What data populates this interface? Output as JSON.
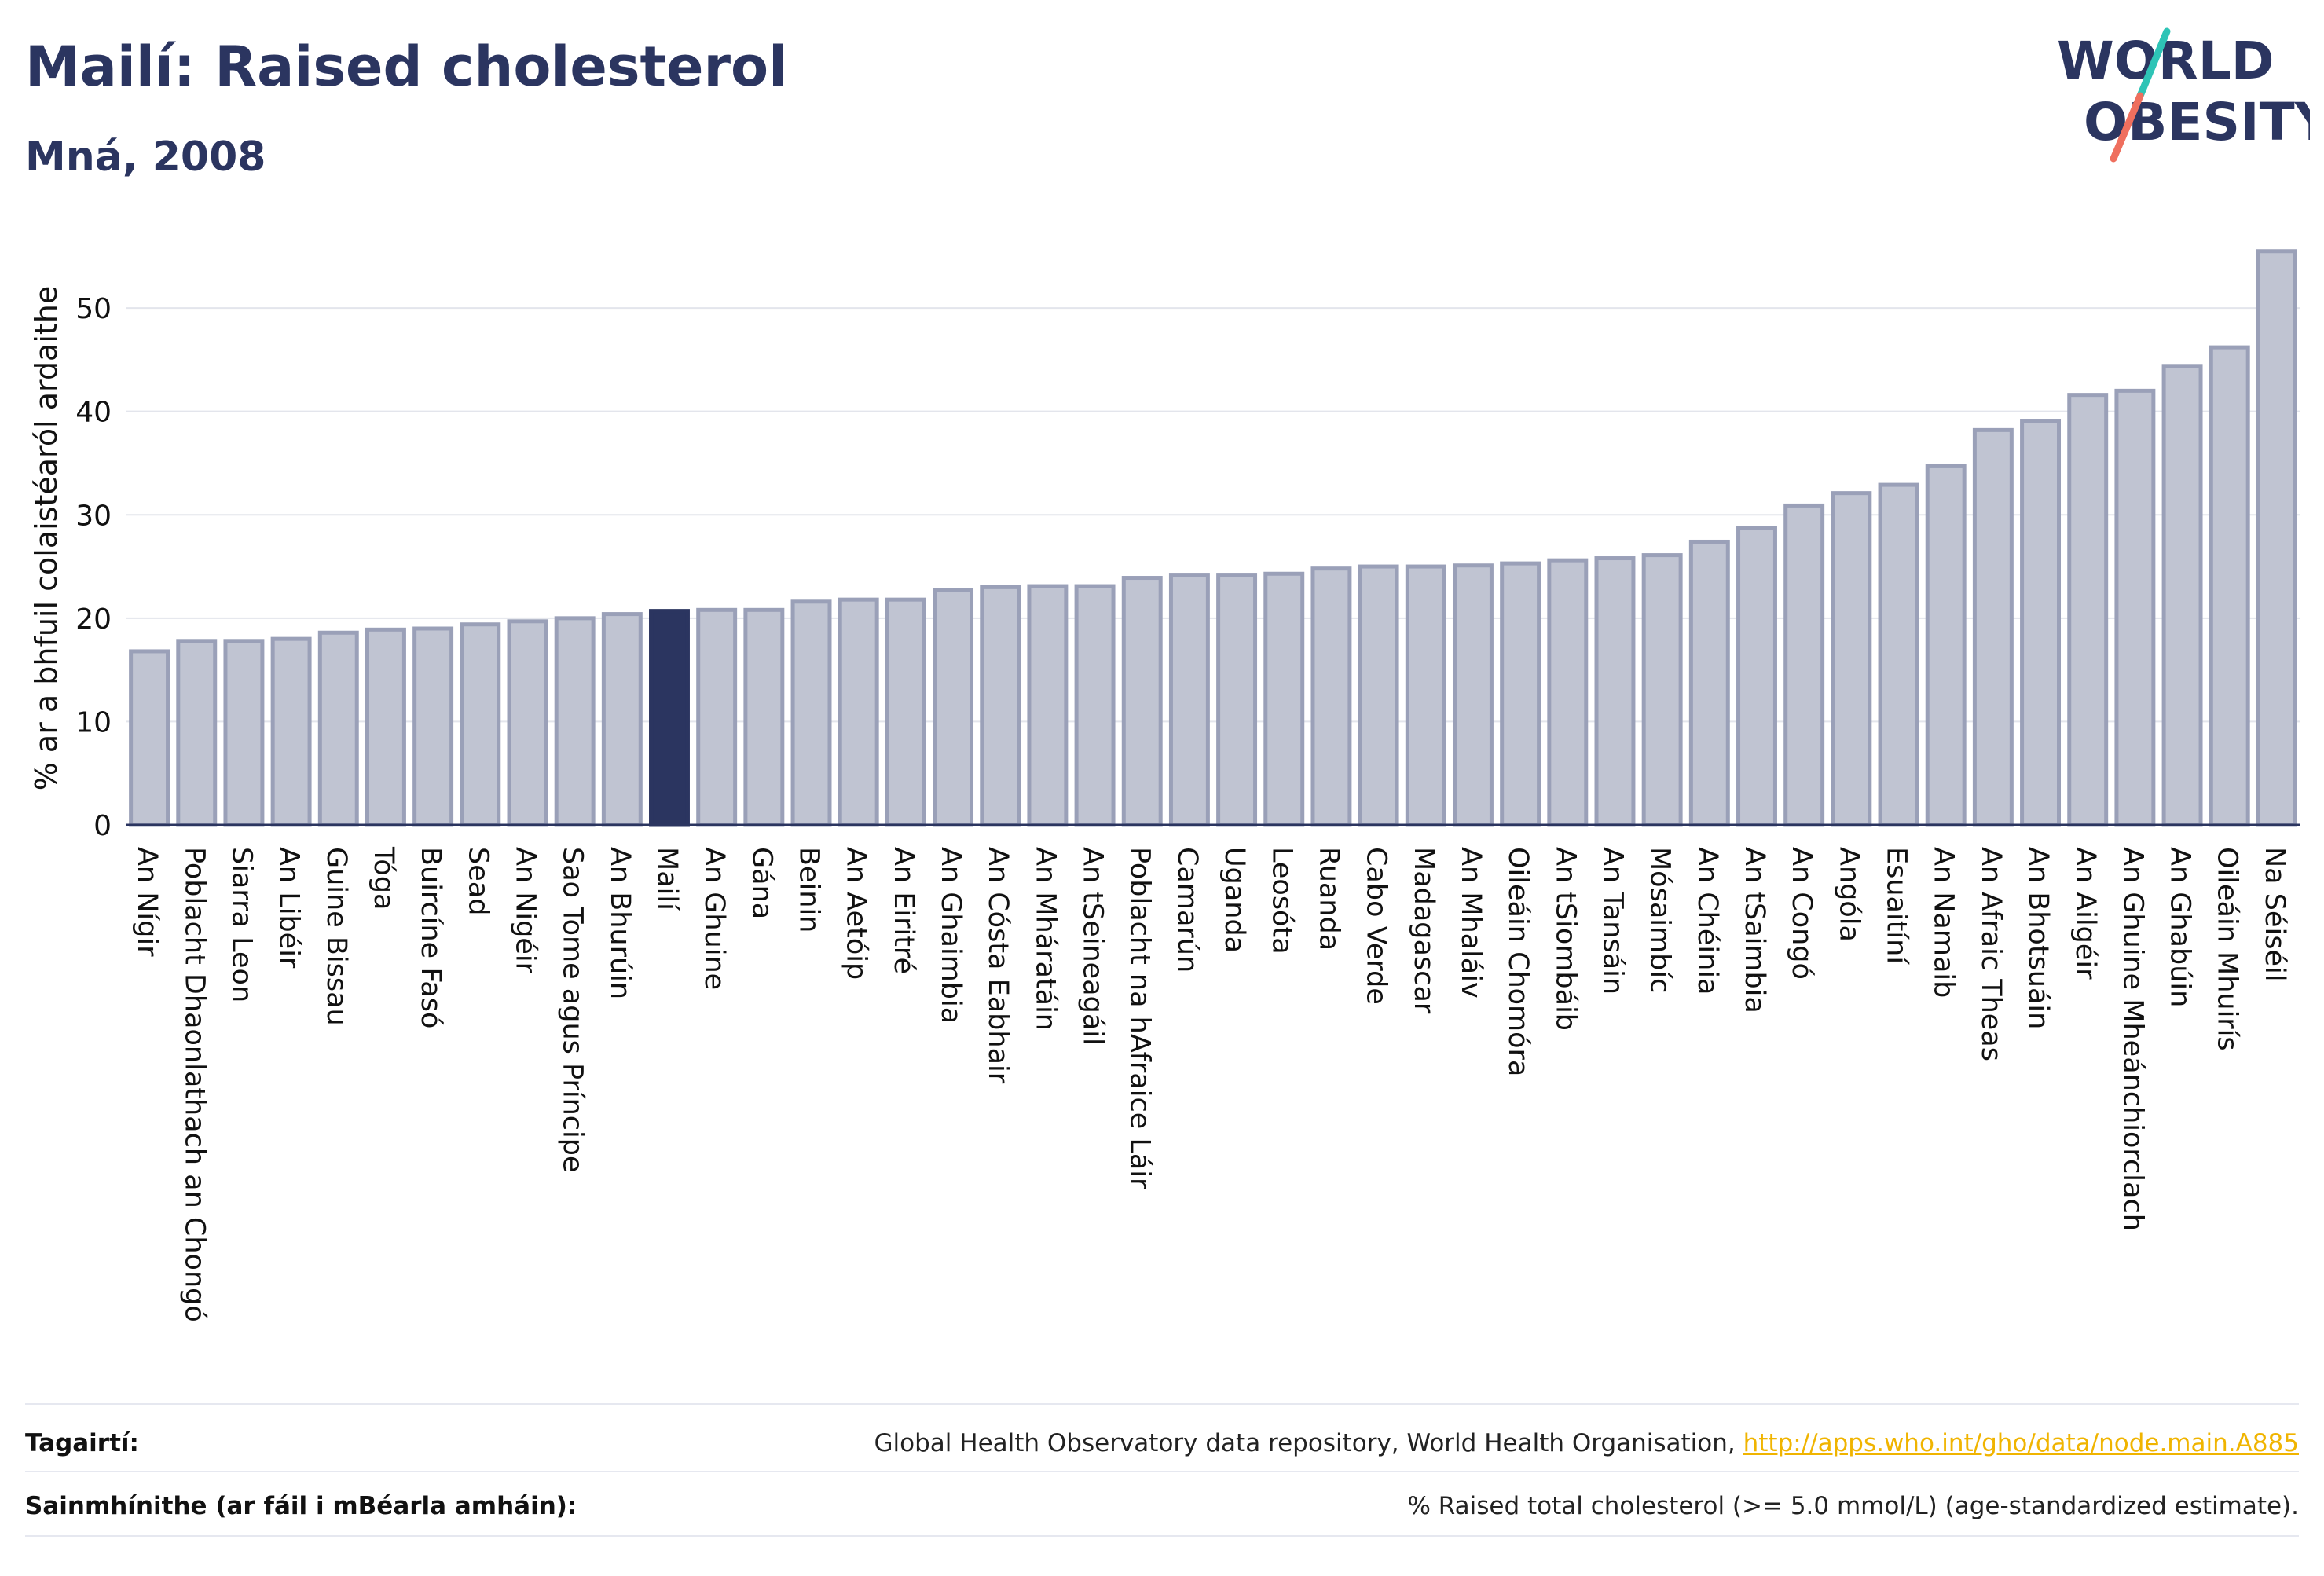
{
  "header": {
    "title": "Mailí: Raised cholesterol",
    "subtitle": "Mná, 2008"
  },
  "logo": {
    "text_line1": "WORLD",
    "text_line2": "OBESITY",
    "colors": {
      "text": "#2b3560",
      "slash_teal": "#2ec4b6",
      "slash_coral": "#ef6f5e"
    }
  },
  "chart_data": {
    "type": "bar",
    "title": "",
    "xlabel": "",
    "ylabel": "% ar a bhfuil colaistéaról ardaithe",
    "ylim": [
      0,
      57
    ],
    "yticks": [
      0,
      10,
      20,
      30,
      40,
      50
    ],
    "grid": true,
    "highlight_category": "Mailí",
    "colors": {
      "bar": "#c0c4d2",
      "bar_edge": "#9aa0b8",
      "highlight": "#2b3560",
      "axis": "#2b3560",
      "grid": "#e3e5ec"
    },
    "categories": [
      "An Nígir",
      "Poblacht Dhaonlathach an Chongó",
      "Siarra Leon",
      "An Libéir",
      "Guine Bissau",
      "Tóga",
      "Buircíne Fasó",
      "Sead",
      "An Nigéir",
      "Sao Tome agus Príncipe",
      "An Bhurúin",
      "Mailí",
      "An Ghuine",
      "Gána",
      "Beinin",
      "An Aetóip",
      "An Eiritré",
      "An Ghaimbia",
      "An Cósta Eabhair",
      "An Mháratáin",
      "An tSeineagáil",
      "Poblacht na hAfraice Láir",
      "Camarún",
      "Uganda",
      "Leosóta",
      "Ruanda",
      "Cabo Verde",
      "Madagascar",
      "An Mhaláiv",
      "Oileáin Chomóra",
      "An tSiombáib",
      "An Tansáin",
      "Mósaimbíc",
      "An Chéinia",
      "An tSaimbia",
      "An Congó",
      "Angóla",
      "Esuaitíní",
      "An Namaib",
      "An Afraic Theas",
      "An Bhotsuáin",
      "An Ailgéir",
      "An Ghuine Mheánchiorclach",
      "An Ghabúin",
      "Oileáin Mhuirís",
      "Na Séiséil"
    ],
    "values": [
      16.8,
      17.8,
      17.8,
      18.0,
      18.6,
      18.9,
      19.0,
      19.4,
      19.7,
      20.0,
      20.4,
      20.7,
      20.8,
      20.8,
      21.6,
      21.8,
      21.8,
      22.7,
      23.0,
      23.1,
      23.1,
      23.9,
      24.2,
      24.2,
      24.3,
      24.8,
      25.0,
      25.0,
      25.1,
      25.3,
      25.6,
      25.8,
      26.1,
      27.4,
      28.7,
      30.9,
      32.1,
      32.9,
      34.7,
      38.2,
      39.1,
      41.6,
      42.0,
      44.4,
      46.2,
      55.5
    ]
  },
  "footer": {
    "references_label": "Tagairtí:",
    "references_text": "Global Health Observatory data repository, World Health Organisation,",
    "references_link": "http://apps.who.int/gho/data/node.main.A885",
    "definitions_label": "Sainmhínithe (ar fáil i mBéarla amháin):",
    "definitions_text": "% Raised total cholesterol (>= 5.0 mmol/L) (age-standardized estimate)."
  }
}
